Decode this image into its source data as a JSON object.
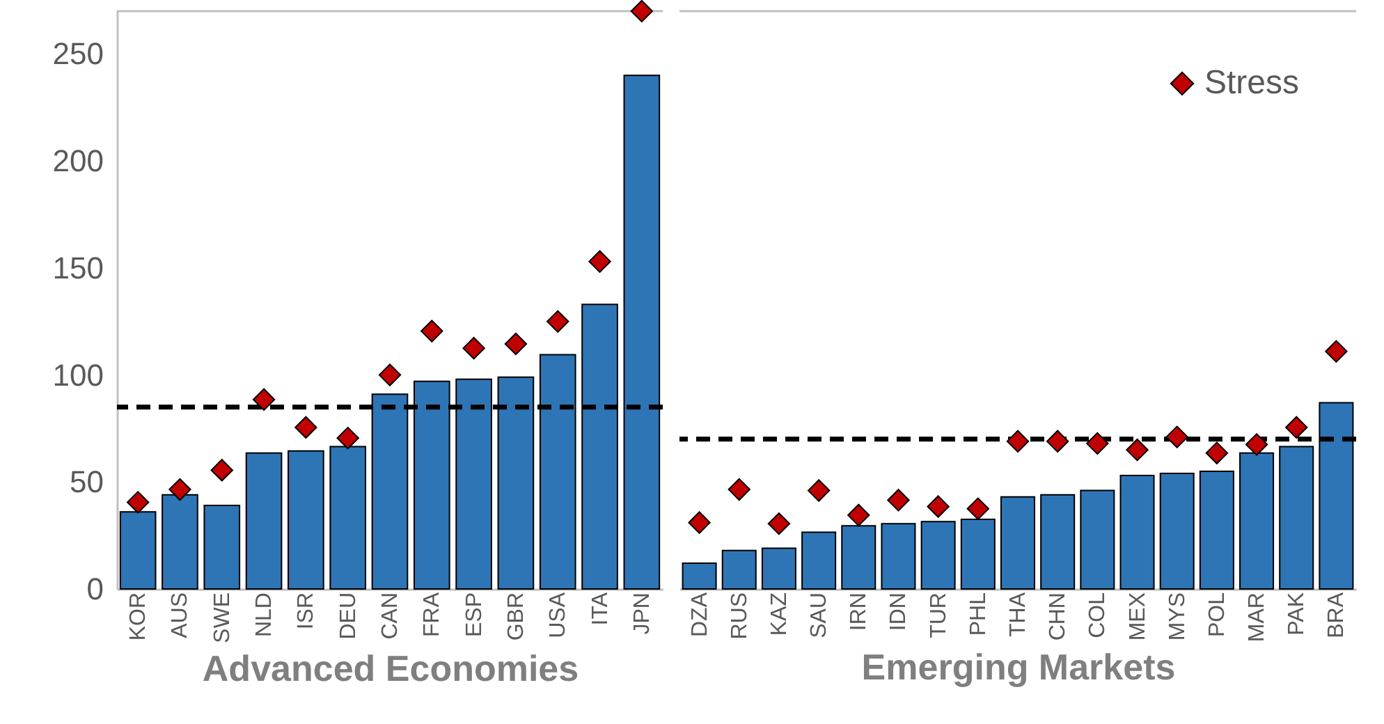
{
  "chart_data": [
    {
      "type": "bar",
      "categories": [
        "KOR",
        "AUS",
        "SWE",
        "NLD",
        "ISR",
        "DEU",
        "CAN",
        "FRA",
        "ESP",
        "GBR",
        "USA",
        "ITA",
        "JPN"
      ],
      "xlabel": "Advanced Economies",
      "series": [
        {
          "color": "#2e75b6",
          "values": [
            36,
            44,
            39,
            63.5,
            64.5,
            66.5,
            91,
            97,
            98,
            99,
            109.5,
            133,
            240
          ]
        },
        {
          "type": "scatter",
          "color": "#c00000",
          "values": [
            40.5,
            46.5,
            55.5,
            88.5,
            75.5,
            70.5,
            100,
            120.5,
            112.5,
            114.5,
            125,
            153,
            270
          ]
        }
      ],
      "marker": "diamond",
      "ylim": [
        0,
        270
      ],
      "yticks": [
        0,
        50,
        100,
        150,
        200,
        250
      ],
      "ref_lines": [
        {
          "axis": "y",
          "value": 85,
          "line_style": "dashed",
          "color": "#000000"
        }
      ],
      "legend": false
    },
    {
      "type": "bar",
      "categories": [
        "DZA",
        "RUS",
        "KAZ",
        "SAU",
        "IRN",
        "IDN",
        "TUR",
        "PHL",
        "THA",
        "CHN",
        "COL",
        "MEX",
        "MYS",
        "POL",
        "MAR",
        "PAK",
        "BRA"
      ],
      "xlabel": "Emerging Markets",
      "series": [
        {
          "color": "#2e75b6",
          "values": [
            12,
            18,
            19,
            26.5,
            29.5,
            30.5,
            31.5,
            32.5,
            43,
            44,
            46,
            53,
            54,
            55,
            63.5,
            66.5,
            87
          ]
        },
        {
          "name": "Stress",
          "type": "scatter",
          "color": "#c00000",
          "values": [
            31,
            46.5,
            30.5,
            46,
            34.5,
            41.5,
            38.5,
            37.5,
            69,
            69,
            68,
            65,
            71,
            63.5,
            67.5,
            75.5,
            111
          ]
        }
      ],
      "marker": "diamond",
      "ylim": [
        0,
        270
      ],
      "yticks": [
        0,
        50,
        100,
        150,
        200,
        250
      ],
      "ref_lines": [
        {
          "axis": "y",
          "value": 70,
          "line_style": "dashed",
          "color": "#000000"
        }
      ],
      "legend": "top right",
      "tick_labels": "x"
    }
  ]
}
